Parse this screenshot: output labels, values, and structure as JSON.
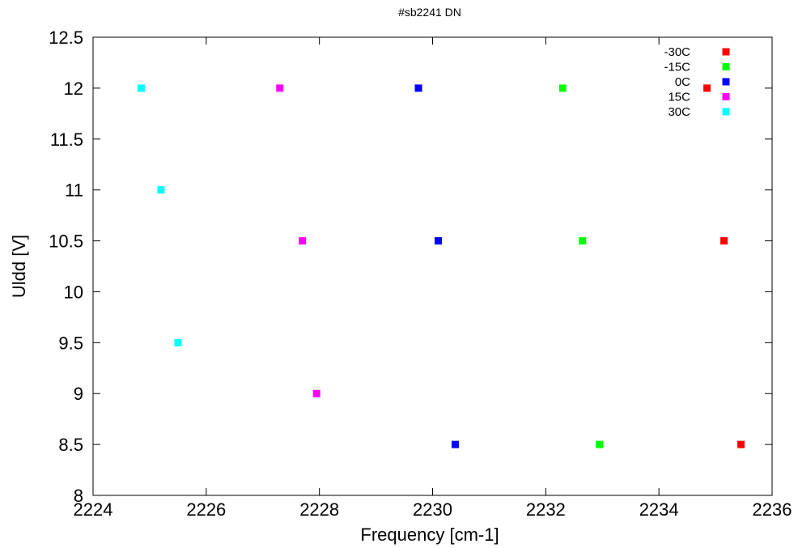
{
  "chart_data": {
    "type": "scatter",
    "title": "#sb2241 DN",
    "xlabel": "Frequency [cm-1]",
    "ylabel": "Uldd [V]",
    "xlim": [
      2224,
      2236
    ],
    "ylim": [
      8,
      12.5
    ],
    "xticks": [
      2224,
      2226,
      2228,
      2230,
      2232,
      2234,
      2236
    ],
    "yticks": [
      8,
      8.5,
      9,
      9.5,
      10,
      10.5,
      11,
      11.5,
      12,
      12.5
    ],
    "xtick_labels": [
      "2224",
      "2226",
      "2228",
      "2230",
      "2232",
      "2234",
      "2236"
    ],
    "ytick_labels": [
      "8",
      "8.5",
      "9",
      "9.5",
      "10",
      "10.5",
      "11",
      "11.5",
      "12",
      "12.5"
    ],
    "grid": false,
    "legend_position": "top-right",
    "series": [
      {
        "name": "-30C",
        "color": "#ff0000",
        "points": [
          [
            2234.85,
            12
          ],
          [
            2235.15,
            10.5
          ],
          [
            2235.45,
            8.5
          ]
        ]
      },
      {
        "name": "-15C",
        "color": "#00ff00",
        "points": [
          [
            2232.3,
            12
          ],
          [
            2232.65,
            10.5
          ],
          [
            2232.95,
            8.5
          ]
        ]
      },
      {
        "name": "0C",
        "color": "#0000ff",
        "points": [
          [
            2229.75,
            12
          ],
          [
            2230.1,
            10.5
          ],
          [
            2230.4,
            8.5
          ]
        ]
      },
      {
        "name": "15C",
        "color": "#ff00ff",
        "points": [
          [
            2227.3,
            12
          ],
          [
            2227.7,
            10.5
          ],
          [
            2227.95,
            9
          ]
        ]
      },
      {
        "name": "30C",
        "color": "#00ffff",
        "points": [
          [
            2224.85,
            12
          ],
          [
            2225.2,
            11
          ],
          [
            2225.5,
            9.5
          ]
        ]
      }
    ]
  }
}
